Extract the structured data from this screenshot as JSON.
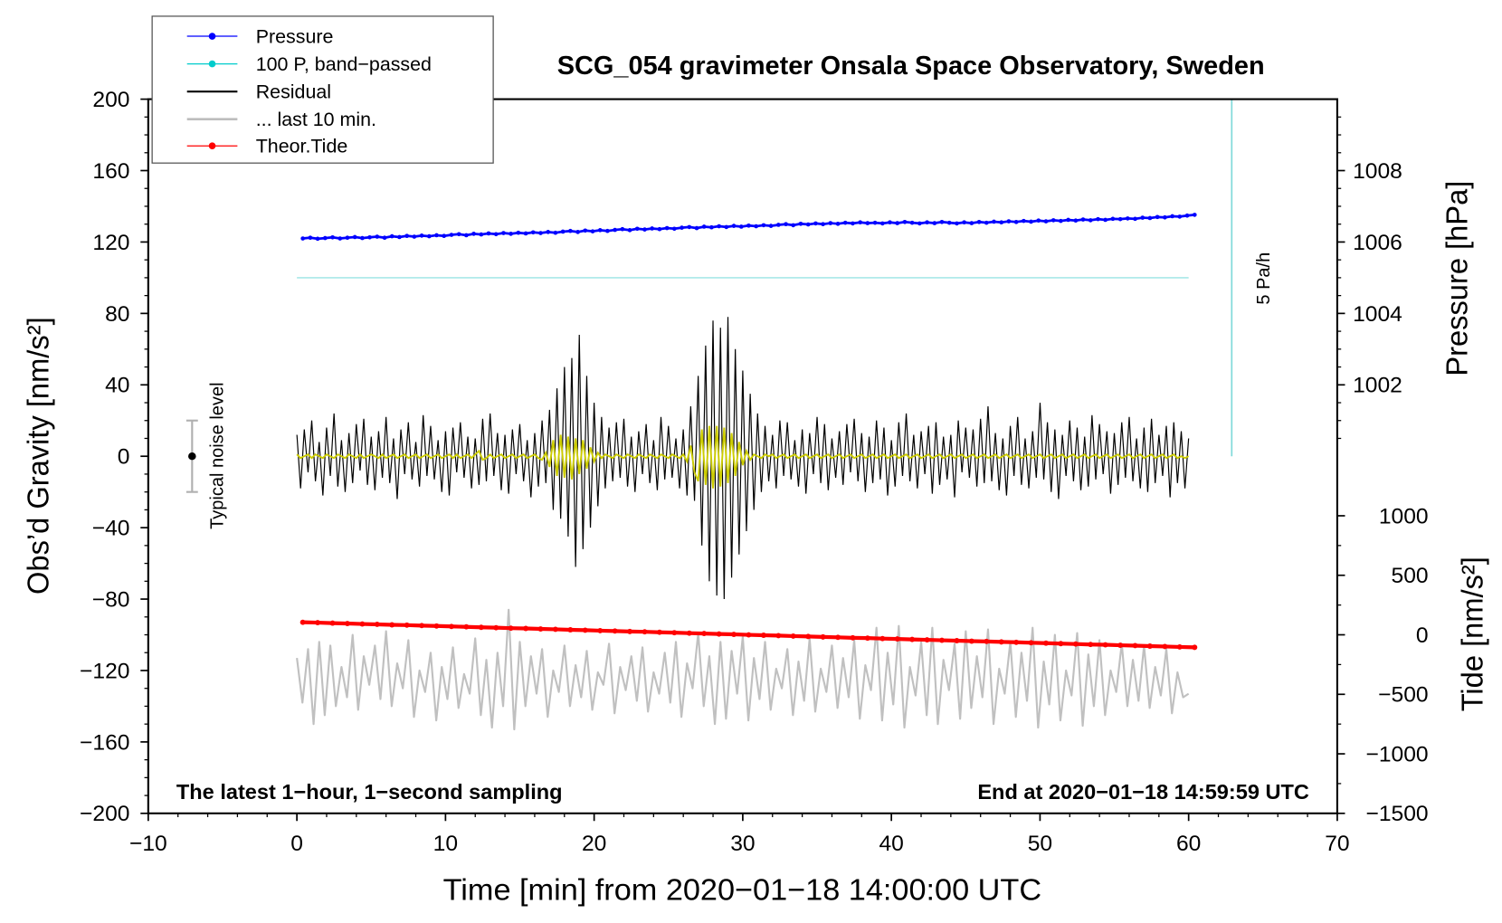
{
  "chart_data": {
    "type": "line",
    "title": "SCG_054 gravimeter Onsala Space Observatory, Sweden",
    "xlabel": "Time [min] from 2020−01−18 14:00:00 UTC",
    "ylabel": "Obs’d Gravity [nm/s²]",
    "y2label": "Pressure [hPa]",
    "y3label": "Tide [nm/s²]",
    "xlim": [
      -10,
      70
    ],
    "ylim": [
      -200,
      200
    ],
    "grid": false,
    "x_ticks": [
      {
        "value": -10,
        "label": "−10"
      },
      {
        "value": 0,
        "label": "0"
      },
      {
        "value": 10,
        "label": "10"
      },
      {
        "value": 20,
        "label": "20"
      },
      {
        "value": 30,
        "label": "30"
      },
      {
        "value": 40,
        "label": "40"
      },
      {
        "value": 50,
        "label": "50"
      },
      {
        "value": 60,
        "label": "60"
      },
      {
        "value": 70,
        "label": "70"
      }
    ],
    "y_ticks": [
      {
        "value": 200,
        "label": "200"
      },
      {
        "value": 160,
        "label": "160"
      },
      {
        "value": 120,
        "label": "120"
      },
      {
        "value": 80,
        "label": "80"
      },
      {
        "value": 40,
        "label": "40"
      },
      {
        "value": 0,
        "label": "0"
      },
      {
        "value": -40,
        "label": "−40"
      },
      {
        "value": -80,
        "label": "−80"
      },
      {
        "value": -120,
        "label": "−120"
      },
      {
        "value": -160,
        "label": "−160"
      },
      {
        "value": -200,
        "label": "−200"
      }
    ],
    "pressure_axis": {
      "p0": 1006,
      "g0": 120,
      "g_per_hpa": 20
    },
    "pressure_ticks": [
      {
        "value": 1008,
        "label": "1008"
      },
      {
        "value": 1006,
        "label": "1006"
      },
      {
        "value": 1004,
        "label": "1004"
      },
      {
        "value": 1002,
        "label": "1002"
      }
    ],
    "tide_axis": {
      "g0": -100,
      "tide_per_g": 15
    },
    "tide_ticks": [
      {
        "value": 1000,
        "label": "1000"
      },
      {
        "value": 500,
        "label": "500"
      },
      {
        "value": 0,
        "label": "0"
      },
      {
        "value": -500,
        "label": "−500"
      },
      {
        "value": -1000,
        "label": "−1000"
      },
      {
        "value": -1500,
        "label": "−1500"
      }
    ],
    "legend": [
      {
        "label": "Pressure",
        "color": "#0000ff",
        "dot": true
      },
      {
        "label": "100 P, band−passed",
        "color": "#00cccc",
        "dot": true
      },
      {
        "label": "Residual",
        "color": "#000000",
        "dot": false
      },
      {
        "label": "... last 10 min.",
        "color": "#bdbdbd",
        "dot": false
      },
      {
        "label": "Theor.Tide",
        "color": "#ff0000",
        "dot": true
      }
    ],
    "annotations": {
      "left_note": "The latest 1−hour, 1−second sampling",
      "right_note": "End at 2020−01−18 14:59:59 UTC",
      "noise_label": "Typical noise level",
      "scale_label": "5 Pa/h"
    },
    "noise_bar": {
      "center": 0,
      "half_range": 20,
      "color": "#b0b0b0"
    },
    "scale_bar": {
      "from": 0,
      "to": 200,
      "color": "#80dada"
    },
    "series": {
      "pressure": {
        "color": "#0000ff",
        "t0": 0.4,
        "dt": 0.5,
        "values_hpa": [
          1006.1,
          1006.12,
          1006.09,
          1006.11,
          1006.13,
          1006.1,
          1006.12,
          1006.14,
          1006.11,
          1006.13,
          1006.15,
          1006.12,
          1006.16,
          1006.14,
          1006.17,
          1006.15,
          1006.18,
          1006.16,
          1006.19,
          1006.17,
          1006.2,
          1006.22,
          1006.19,
          1006.23,
          1006.21,
          1006.24,
          1006.22,
          1006.25,
          1006.23,
          1006.26,
          1006.24,
          1006.27,
          1006.25,
          1006.28,
          1006.26,
          1006.29,
          1006.31,
          1006.28,
          1006.32,
          1006.3,
          1006.33,
          1006.31,
          1006.34,
          1006.36,
          1006.33,
          1006.37,
          1006.35,
          1006.38,
          1006.36,
          1006.39,
          1006.37,
          1006.4,
          1006.42,
          1006.39,
          1006.43,
          1006.41,
          1006.44,
          1006.42,
          1006.45,
          1006.43,
          1006.46,
          1006.44,
          1006.47,
          1006.45,
          1006.48,
          1006.5,
          1006.47,
          1006.51,
          1006.49,
          1006.52,
          1006.5,
          1006.53,
          1006.51,
          1006.54,
          1006.52,
          1006.55,
          1006.53,
          1006.54,
          1006.52,
          1006.55,
          1006.53,
          1006.56,
          1006.54,
          1006.52,
          1006.55,
          1006.53,
          1006.56,
          1006.54,
          1006.52,
          1006.55,
          1006.53,
          1006.56,
          1006.54,
          1006.57,
          1006.55,
          1006.58,
          1006.56,
          1006.59,
          1006.57,
          1006.6,
          1006.58,
          1006.61,
          1006.59,
          1006.62,
          1006.6,
          1006.63,
          1006.61,
          1006.64,
          1006.62,
          1006.65,
          1006.64,
          1006.66,
          1006.65,
          1006.68,
          1006.67,
          1006.7,
          1006.69,
          1006.72,
          1006.71,
          1006.74,
          1006.76
        ]
      },
      "band_passed": {
        "color": "#a8e8e8",
        "t": [
          0,
          60
        ],
        "values": [
          100,
          100
        ]
      },
      "residual": {
        "color": "#000000",
        "t0": 0,
        "dt": 0.25,
        "values": [
          12,
          -18,
          15,
          -9,
          20,
          -14,
          8,
          -22,
          16,
          -11,
          24,
          -17,
          9,
          -20,
          13,
          -15,
          18,
          -8,
          21,
          -16,
          11,
          -19,
          14,
          -12,
          22,
          -15,
          10,
          -24,
          15,
          -10,
          19,
          -13,
          8,
          -17,
          23,
          -11,
          17,
          -13,
          9,
          -20,
          14,
          -22,
          16,
          -9,
          19,
          -12,
          11,
          -18,
          10,
          -16,
          21,
          -14,
          24,
          -11,
          13,
          -19,
          12,
          -21,
          15,
          -10,
          18,
          -14,
          9,
          -23,
          13,
          -17,
          20,
          -15,
          26,
          -30,
          38,
          -35,
          50,
          -45,
          55,
          -62,
          68,
          -52,
          45,
          -40,
          30,
          -28,
          22,
          -18,
          16,
          -14,
          19,
          -12,
          21,
          -17,
          11,
          -20,
          14,
          -10,
          18,
          -15,
          9,
          -19,
          22,
          -13,
          17,
          -12,
          10,
          -18,
          15,
          -22,
          28,
          -25,
          45,
          -50,
          62,
          -70,
          76,
          -78,
          72,
          -80,
          78,
          -68,
          60,
          -55,
          48,
          -42,
          35,
          -30,
          24,
          -20,
          17,
          -14,
          12,
          -18,
          20,
          -11,
          19,
          -13,
          9,
          -17,
          15,
          -21,
          13,
          -10,
          22,
          -15,
          18,
          -19,
          10,
          -12,
          14,
          -16,
          18,
          -9,
          21,
          -14,
          13,
          -20,
          11,
          -15,
          20,
          -13,
          16,
          -22,
          9,
          -17,
          19,
          -11,
          24,
          -14,
          12,
          -18,
          14,
          -10,
          17,
          -21,
          19,
          -16,
          11,
          -13,
          12,
          -23,
          20,
          -9,
          16,
          -12,
          15,
          -17,
          21,
          -15,
          28,
          -14,
          13,
          -19,
          10,
          -22,
          17,
          -11,
          22,
          -16,
          10,
          -18,
          14,
          -12,
          30,
          -13,
          19,
          -20,
          15,
          -24,
          12,
          -11,
          20,
          -14,
          16,
          -19,
          11,
          -17,
          23,
          -13,
          18,
          -10,
          14,
          -21,
          13,
          -16,
          19,
          -12,
          22,
          -14,
          10,
          -18,
          16,
          -20,
          21,
          -15,
          12,
          -11,
          17,
          -23,
          19,
          -15,
          14,
          -18,
          10
        ]
      },
      "residual_filtered": {
        "color": "#cccc00",
        "t0": 0,
        "dt": 0.25,
        "values": [
          1,
          -1,
          0,
          1,
          -1,
          1,
          0,
          -1,
          1,
          0,
          -1,
          1,
          0,
          -1,
          1,
          0,
          -1,
          1,
          -1,
          0,
          1,
          0,
          -1,
          1,
          -1,
          0,
          1,
          -1,
          0,
          1,
          -1,
          0,
          1,
          -1,
          0,
          1,
          -1,
          0,
          1,
          -1,
          0,
          1,
          -1,
          1,
          -1,
          0,
          1,
          -1,
          1,
          3,
          -2,
          -1,
          1,
          -1,
          0,
          1,
          -1,
          0,
          1,
          -1,
          0,
          1,
          -1,
          0,
          1,
          -1,
          -2,
          2,
          -6,
          9,
          -11,
          12,
          -12,
          11,
          -13,
          10,
          -10,
          9,
          -7,
          5,
          -3,
          2,
          -1,
          1,
          0,
          -1,
          1,
          0,
          -1,
          1,
          0,
          -1,
          1,
          0,
          -1,
          1,
          0,
          -1,
          1,
          0,
          -1,
          1,
          0,
          -1,
          1,
          -3,
          6,
          -9,
          -14,
          15,
          -16,
          17,
          -18,
          17,
          -17,
          16,
          -15,
          13,
          -11,
          8,
          -5,
          3,
          -2,
          1,
          0,
          -1,
          1,
          0,
          1,
          -1,
          0,
          1,
          -1,
          0,
          1,
          -1,
          0,
          1,
          -1,
          0,
          1,
          -1,
          0,
          1,
          -1,
          0,
          1,
          -1,
          0,
          1,
          -1,
          0,
          1,
          -1,
          0,
          1,
          -1,
          0,
          1,
          -1,
          0,
          1,
          -1,
          0,
          1,
          -1,
          0,
          1,
          -1,
          0,
          1,
          -1,
          0,
          1,
          -1,
          0,
          1,
          -1,
          0,
          1,
          -1,
          0,
          1,
          -1,
          0,
          1,
          -1,
          0,
          1,
          -1,
          0,
          1,
          -1,
          0,
          1,
          -1,
          0,
          1,
          -1,
          0,
          1,
          -1,
          0,
          1,
          -1,
          0,
          1,
          -1,
          0,
          1,
          -1,
          0,
          1,
          -1,
          0,
          1,
          -1,
          0,
          1,
          -1,
          0,
          1,
          -1,
          0,
          1,
          -1,
          0,
          1,
          -1,
          0,
          1,
          -1,
          0,
          1,
          -1,
          0,
          1,
          -1,
          0,
          -1,
          0
        ]
      },
      "last_10_min": {
        "color": "#c0c0c0",
        "t0": 0,
        "dt": 0.375,
        "values": [
          -113,
          -138,
          -108,
          -150,
          -104,
          -145,
          -106,
          -140,
          -118,
          -135,
          -100,
          -142,
          -112,
          -128,
          -106,
          -136,
          -98,
          -140,
          -116,
          -130,
          -103,
          -146,
          -120,
          -132,
          -110,
          -148,
          -118,
          -136,
          -107,
          -141,
          -122,
          -133,
          -102,
          -145,
          -114,
          -152,
          -110,
          -140,
          -86,
          -153,
          -104,
          -140,
          -112,
          -133,
          -108,
          -146,
          -120,
          -132,
          -106,
          -140,
          -117,
          -135,
          -109,
          -142,
          -121,
          -128,
          -105,
          -144,
          -118,
          -131,
          -112,
          -137,
          -107,
          -143,
          -121,
          -133,
          -110,
          -138,
          -104,
          -146,
          -116,
          -130,
          -99,
          -140,
          -112,
          -150,
          -104,
          -147,
          -109,
          -133,
          -101,
          -148,
          -113,
          -136,
          -104,
          -142,
          -119,
          -130,
          -108,
          -145,
          -115,
          -137,
          -102,
          -143,
          -119,
          -132,
          -106,
          -141,
          -113,
          -135,
          -103,
          -147,
          -117,
          -131,
          -96,
          -148,
          -110,
          -139,
          -95,
          -152,
          -118,
          -134,
          -104,
          -145,
          -96,
          -150,
          -114,
          -131,
          -105,
          -147,
          -98,
          -141,
          -112,
          -135,
          -97,
          -150,
          -119,
          -133,
          -104,
          -146,
          -110,
          -137,
          -96,
          -152,
          -115,
          -139,
          -100,
          -148,
          -120,
          -134,
          -99,
          -151,
          -111,
          -140,
          -103,
          -145,
          -120,
          -132,
          -105,
          -140,
          -114,
          -137,
          -106,
          -141,
          -118,
          -134,
          -108,
          -144,
          -121,
          -135,
          -133
        ]
      },
      "theor_tide": {
        "color": "#ff0000",
        "t0": 0.4,
        "dt": 1,
        "values": [
          105,
          102,
          98,
          95,
          91,
          88,
          84,
          81,
          77,
          74,
          70,
          67,
          63,
          60,
          56,
          53,
          49,
          46,
          42,
          39,
          35,
          32,
          28,
          25,
          21,
          18,
          14,
          11,
          7,
          4,
          0,
          -4,
          -7,
          -11,
          -14,
          -18,
          -21,
          -25,
          -28,
          -32,
          -35,
          -39,
          -42,
          -46,
          -49,
          -53,
          -56,
          -60,
          -63,
          -67,
          -70,
          -74,
          -77,
          -81,
          -84,
          -88,
          -91,
          -95,
          -98,
          -102,
          -105
        ]
      }
    }
  }
}
